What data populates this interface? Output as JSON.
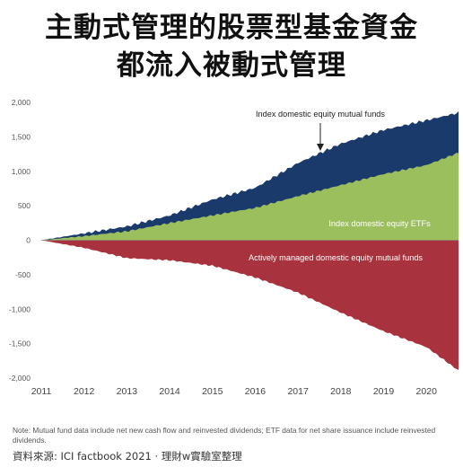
{
  "header": {
    "title_line1": "主動式管理的股票型基金資金",
    "title_line2": "都流入被動式管理"
  },
  "chart_data": {
    "type": "area",
    "x": [
      2011,
      2012,
      2013,
      2014,
      2015,
      2016,
      2017,
      2018,
      2019,
      2020,
      2020.75
    ],
    "xlabel": "",
    "ylabel": "",
    "xlim": [
      2011,
      2020.75
    ],
    "ylim": [
      -2000,
      2000
    ],
    "x_ticks": [
      "2011",
      "2012",
      "2013",
      "2014",
      "2015",
      "2016",
      "2017",
      "2018",
      "2019",
      "2020"
    ],
    "y_ticks": [
      "2,000",
      "1,500",
      "1,000",
      "500",
      "0",
      "-500",
      "-1,000",
      "-1,500",
      "-2,000"
    ],
    "grid": false,
    "legend": "none",
    "series": [
      {
        "name": "Index domestic equity mutual funds",
        "color": "#1a3a6b",
        "values": [
          0,
          100,
          200,
          360,
          590,
          760,
          1120,
          1400,
          1600,
          1740,
          1850
        ]
      },
      {
        "name": "Index domestic equity ETFs",
        "color": "#9cbf5e",
        "values": [
          0,
          60,
          130,
          250,
          360,
          470,
          640,
          800,
          960,
          1090,
          1270
        ]
      },
      {
        "name": "Actively managed domestic equity mutual funds",
        "color": "#a8323e",
        "values": [
          0,
          -110,
          -260,
          -290,
          -370,
          -540,
          -760,
          -1050,
          -1320,
          -1550,
          -1890
        ]
      }
    ],
    "annotations": [
      {
        "text": "Index domestic equity mutual funds",
        "series": 0
      },
      {
        "text": "Index domestic equity ETFs",
        "series": 1
      },
      {
        "text": "Actively managed domestic equity mutual funds",
        "series": 2
      }
    ]
  },
  "note": "Note: Mutual fund data include net new cash flow and reinvested dividends; ETF data for net share issuance include reinvested dividends.",
  "source": "資料來源: ICI factbook 2021   · 理財w實驗室整理"
}
